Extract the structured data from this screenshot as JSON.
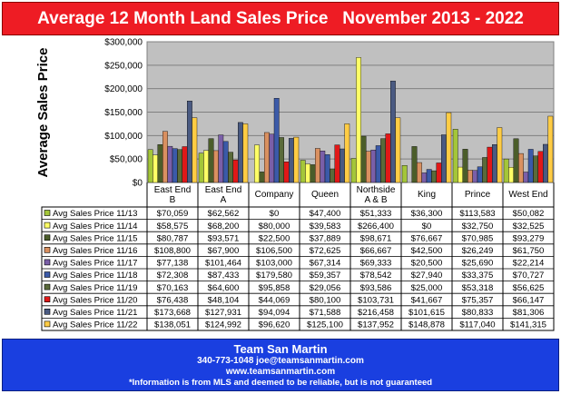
{
  "title": "Average 12 Month Land Sales Price   November 2013 - 2022",
  "colors": {
    "title_bg": "#ee1c24",
    "footer_bg": "#1a3fe0",
    "plot_bg": "#c0c0c0",
    "series": [
      "#a4c639",
      "#ffff66",
      "#4b5d2a",
      "#d99060",
      "#7a5fa8",
      "#3b5aa8",
      "#5a6a3a",
      "#e01818",
      "#4a5a82",
      "#ffcc44"
    ]
  },
  "chart_data": {
    "type": "bar",
    "ylabel": "Average Sales Price",
    "xlabel": "",
    "ylim": [
      0,
      300000
    ],
    "yticks": [
      "$0",
      "$50,000",
      "$100,000",
      "$150,000",
      "$200,000",
      "$250,000",
      "$300,000"
    ],
    "grid": true,
    "categories": [
      "East End B",
      "East End A",
      "Company",
      "Queen",
      "Northside A & B",
      "King",
      "Prince",
      "West End"
    ],
    "category_lines": [
      [
        "East End",
        "B"
      ],
      [
        "East End",
        "A"
      ],
      [
        "Company"
      ],
      [
        "Queen"
      ],
      [
        "Northside",
        "A & B"
      ],
      [
        "King"
      ],
      [
        "Prince"
      ],
      [
        "West End"
      ]
    ],
    "series": [
      {
        "name": "Avg Sales Price 11/13",
        "values": [
          70059,
          62562,
          0,
          47400,
          51333,
          36300,
          113583,
          50082
        ],
        "labels": [
          "$70,059",
          "$62,562",
          "$0",
          "$47,400",
          "$51,333",
          "$36,300",
          "$113,583",
          "$50,082"
        ]
      },
      {
        "name": "Avg Sales Price 11/14",
        "values": [
          58575,
          68200,
          80000,
          39583,
          266400,
          0,
          32750,
          32525
        ],
        "labels": [
          "$58,575",
          "$68,200",
          "$80,000",
          "$39,583",
          "$266,400",
          "$0",
          "$32,750",
          "$32,525"
        ]
      },
      {
        "name": "Avg Sales Price 11/15",
        "values": [
          80787,
          93571,
          22500,
          37889,
          98671,
          76667,
          70985,
          93279
        ],
        "labels": [
          "$80,787",
          "$93,571",
          "$22,500",
          "$37,889",
          "$98,671",
          "$76,667",
          "$70,985",
          "$93,279"
        ]
      },
      {
        "name": "Avg Sales Price 11/16",
        "values": [
          108800,
          67900,
          106500,
          72625,
          66667,
          42500,
          26249,
          61750
        ],
        "labels": [
          "$108,800",
          "$67,900",
          "$106,500",
          "$72,625",
          "$66,667",
          "$42,500",
          "$26,249",
          "$61,750"
        ]
      },
      {
        "name": "Avg Sales Price 11/17",
        "values": [
          77138,
          101464,
          103000,
          67314,
          69333,
          20500,
          25690,
          22214
        ],
        "labels": [
          "$77,138",
          "$101,464",
          "$103,000",
          "$67,314",
          "$69,333",
          "$20,500",
          "$25,690",
          "$22,214"
        ]
      },
      {
        "name": "Avg Sales Price 11/18",
        "values": [
          72308,
          87433,
          179580,
          59357,
          78542,
          27940,
          33375,
          70727
        ],
        "labels": [
          "$72,308",
          "$87,433",
          "$179,580",
          "$59,357",
          "$78,542",
          "$27,940",
          "$33,375",
          "$70,727"
        ]
      },
      {
        "name": "Avg Sales Price 11/19",
        "values": [
          70163,
          64600,
          95858,
          29056,
          93586,
          25000,
          53318,
          56625
        ],
        "labels": [
          "$70,163",
          "$64,600",
          "$95,858",
          "$29,056",
          "$93,586",
          "$25,000",
          "$53,318",
          "$56,625"
        ]
      },
      {
        "name": "Avg Sales Price 11/20",
        "values": [
          76438,
          48104,
          44069,
          80100,
          103731,
          41667,
          75357,
          66147
        ],
        "labels": [
          "$76,438",
          "$48,104",
          "$44,069",
          "$80,100",
          "$103,731",
          "$41,667",
          "$75,357",
          "$66,147"
        ]
      },
      {
        "name": "Avg Sales Price 11/21",
        "values": [
          173668,
          127931,
          94094,
          71588,
          216458,
          101615,
          80833,
          81306
        ],
        "labels": [
          "$173,668",
          "$127,931",
          "$94,094",
          "$71,588",
          "$216,458",
          "$101,615",
          "$80,833",
          "$81,306"
        ]
      },
      {
        "name": "Avg Sales Price 11/22",
        "values": [
          138051,
          124992,
          96620,
          125100,
          137952,
          148878,
          117040,
          141315
        ],
        "labels": [
          "$138,051",
          "$124,992",
          "$96,620",
          "$125,100",
          "$137,952",
          "$148,878",
          "$117,040",
          "$141,315"
        ]
      }
    ]
  },
  "footer": {
    "company": "Team San Martin",
    "contact": "340-773-1048    joe@teamsanmartin.com",
    "website": "www.teamsanmartin.com",
    "disclaimer": "*Information is from MLS and deemed to be reliable, but is not guaranteed"
  }
}
